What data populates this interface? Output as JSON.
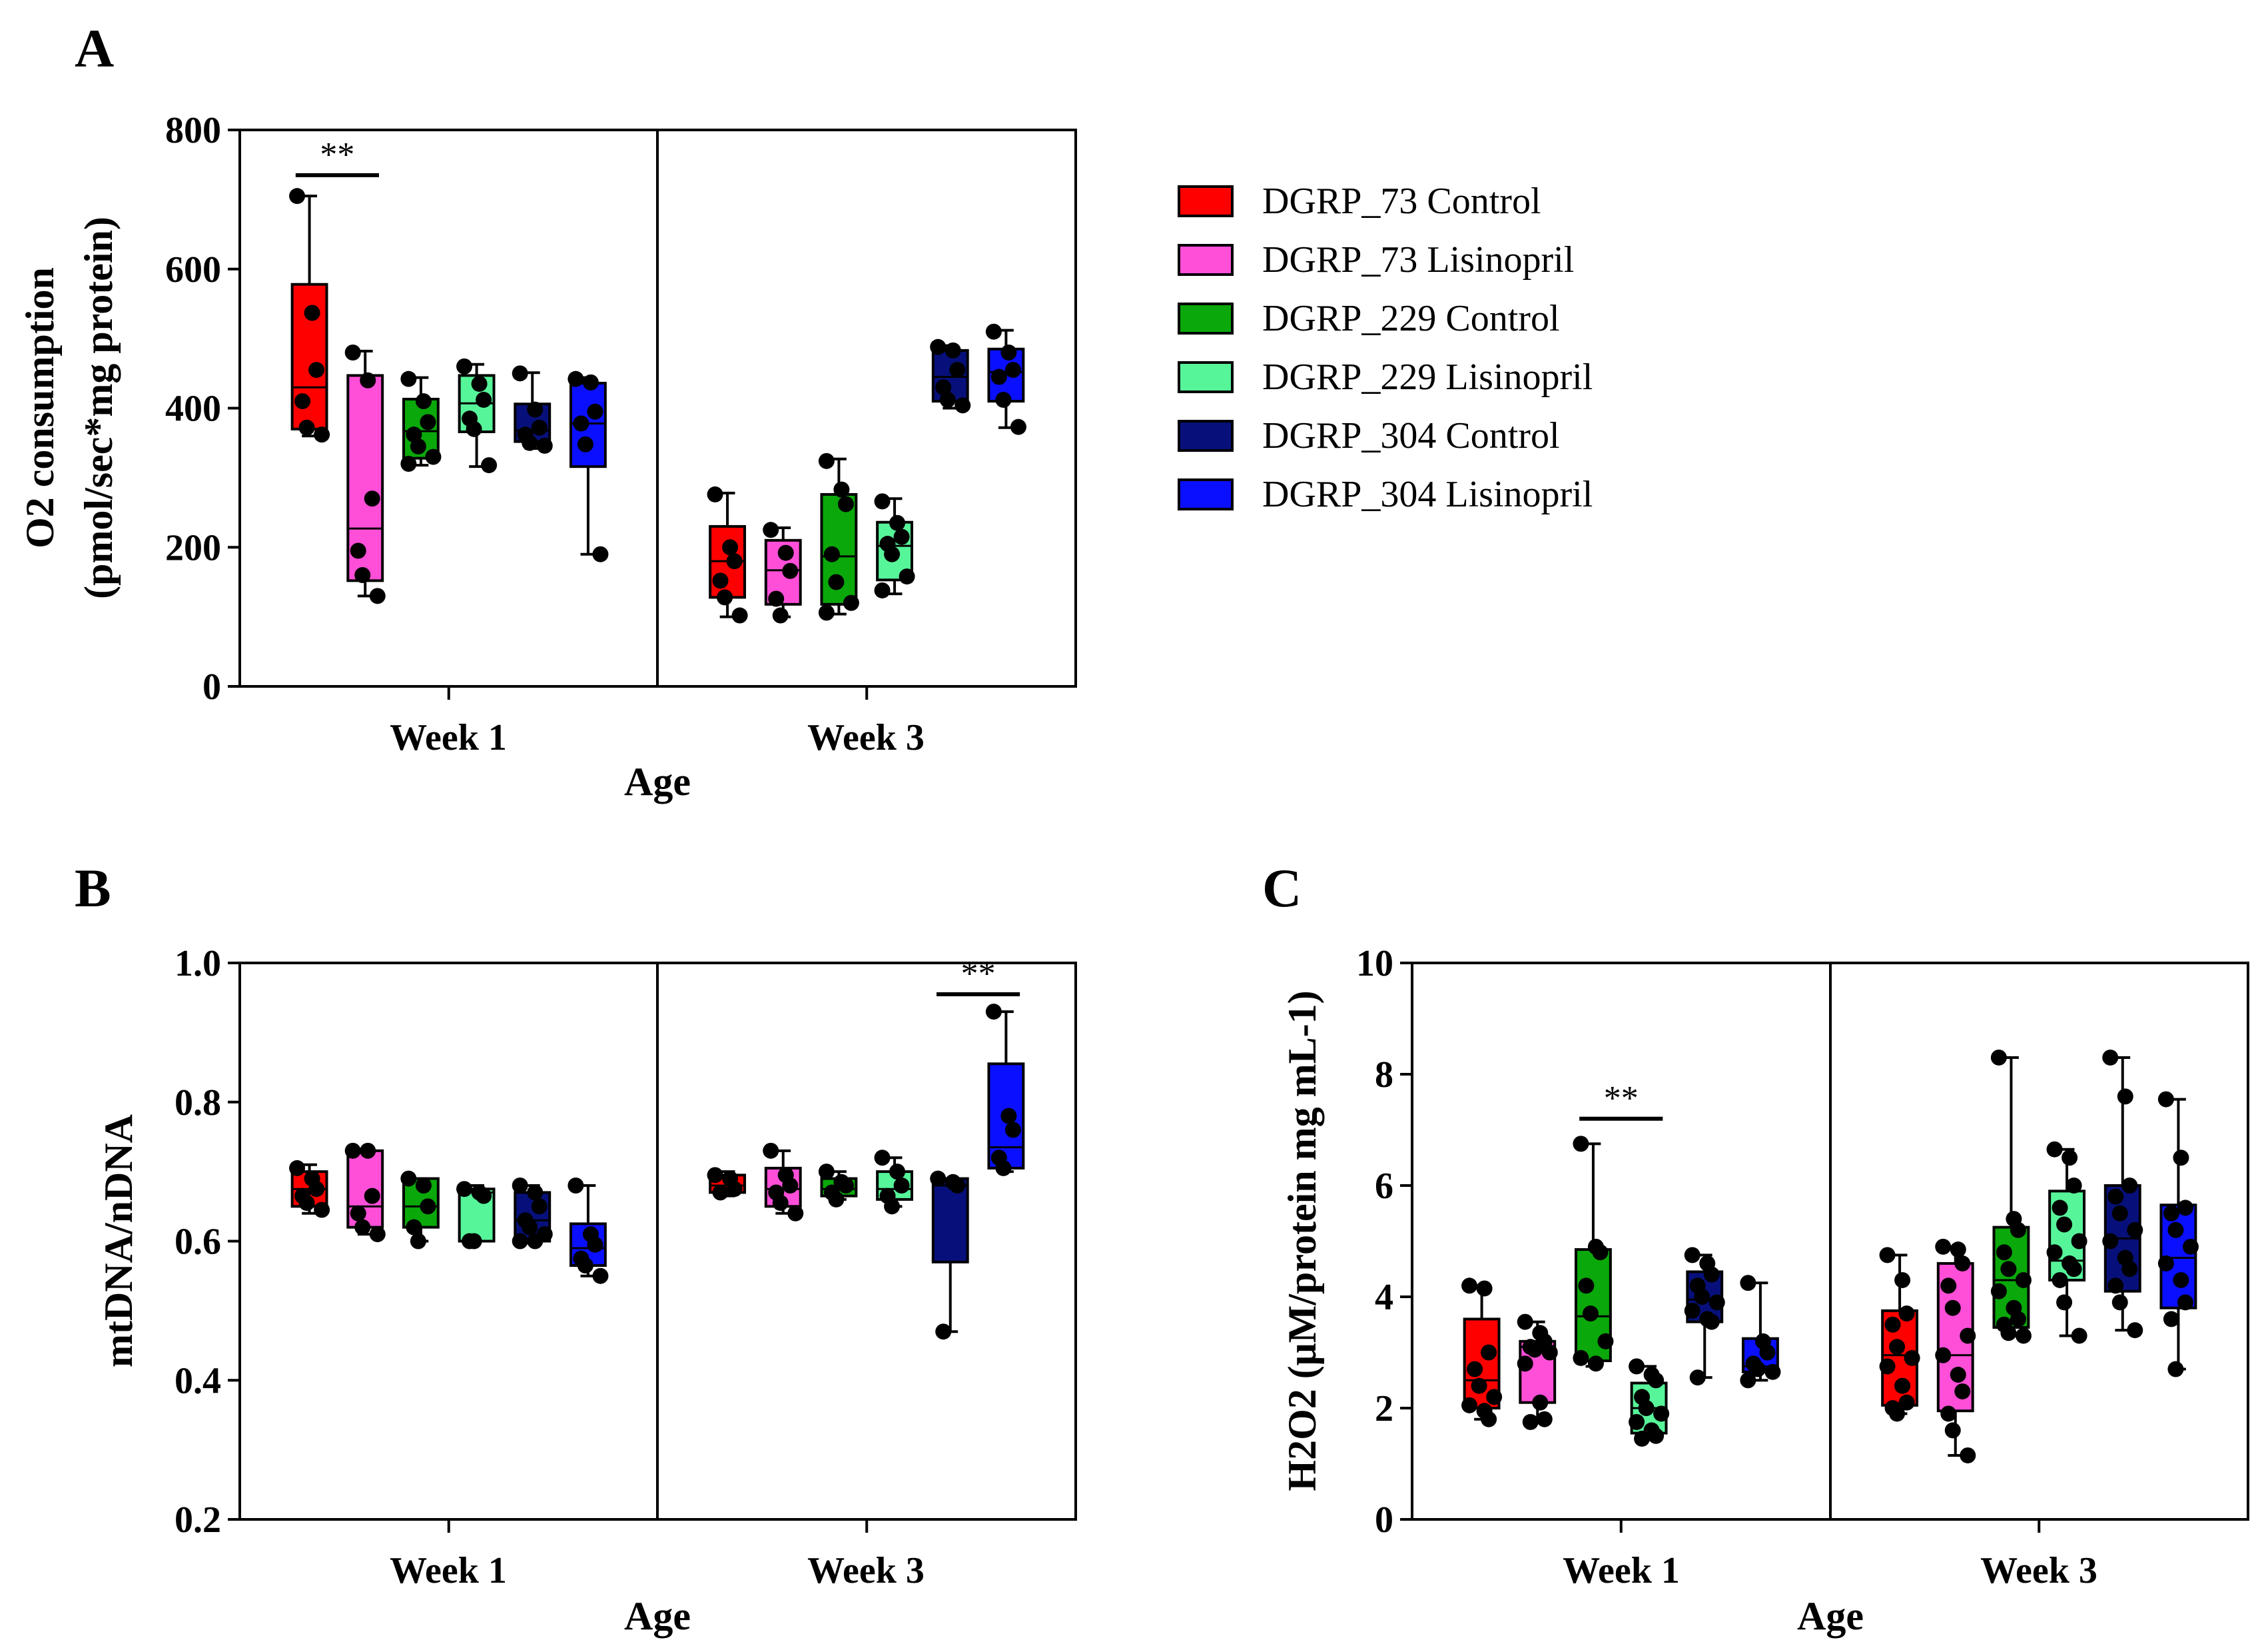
{
  "panels": {
    "A": {
      "letter": "A"
    },
    "B": {
      "letter": "B"
    },
    "C": {
      "letter": "C"
    }
  },
  "legend": [
    {
      "label": "DGRP_73 Control",
      "color": "#ff0000"
    },
    {
      "label": "DGRP_73 Lisinopril",
      "color": "#ff4fd8"
    },
    {
      "label": "DGRP_229 Control",
      "color": "#0aa80a"
    },
    {
      "label": "DGRP_229 Lisinopril",
      "color": "#57f59a"
    },
    {
      "label": "DGRP_304 Control",
      "color": "#07107a"
    },
    {
      "label": "DGRP_304 Lisinopril",
      "color": "#0a10ff"
    }
  ],
  "chart_data": [
    {
      "panel": "A",
      "type": "box",
      "title": "",
      "xlabel": "Age",
      "ylabel_lines": [
        "O2 consumption",
        "(pmol/sec*mg protein)"
      ],
      "ylim": [
        0,
        800
      ],
      "yticks": [
        0,
        200,
        400,
        600,
        800
      ],
      "ytick_labels": [
        "0",
        "200",
        "400",
        "600",
        "800"
      ],
      "categories": [
        "Week 1",
        "Week 3"
      ],
      "significance": [
        {
          "group": 0,
          "from": 0,
          "to": 1,
          "label": "**",
          "y": 735
        }
      ],
      "groups": [
        [
          {
            "whisker": [
              360,
              705
            ],
            "box": [
              370,
              578
            ],
            "median": 430,
            "points": [
              705,
              537,
              455,
              410,
              372,
              362
            ]
          },
          {
            "whisker": [
              130,
              482
            ],
            "box": [
              152,
              447
            ],
            "median": 227,
            "points": [
              480,
              440,
              270,
              195,
              160,
              130
            ]
          },
          {
            "whisker": [
              318,
              444
            ],
            "box": [
              328,
              413
            ],
            "median": 367,
            "points": [
              442,
              410,
              380,
              362,
              345,
              330,
              320
            ]
          },
          {
            "whisker": [
              316,
              463
            ],
            "box": [
              366,
              447
            ],
            "median": 407,
            "points": [
              460,
              435,
              412,
              385,
              370,
              318
            ]
          },
          {
            "whisker": [
              342,
              451
            ],
            "box": [
              352,
              406
            ],
            "median": 368,
            "points": [
              450,
              398,
              372,
              362,
              350,
              346
            ]
          },
          {
            "whisker": [
              190,
              444
            ],
            "box": [
              316,
              436
            ],
            "median": 378,
            "points": [
              442,
              437,
              395,
              378,
              348,
              190
            ]
          }
        ],
        [
          {
            "whisker": [
              100,
              278
            ],
            "box": [
              128,
              230
            ],
            "median": 180,
            "points": [
              276,
              200,
              180,
              152,
              128,
              102
            ]
          },
          {
            "whisker": [
              100,
              228
            ],
            "box": [
              118,
              210
            ],
            "median": 167,
            "points": [
              225,
              192,
              166,
              126,
              102
            ]
          },
          {
            "whisker": [
              104,
              327
            ],
            "box": [
              118,
              276
            ],
            "median": 187,
            "points": [
              324,
              283,
              262,
              190,
              150,
              120,
              106
            ]
          },
          {
            "whisker": [
              133,
              270
            ],
            "box": [
              153,
              236
            ],
            "median": 202,
            "points": [
              266,
              235,
              215,
              205,
              190,
              158,
              138
            ]
          },
          {
            "whisker": [
              400,
              490
            ],
            "box": [
              410,
              483
            ],
            "median": 445,
            "points": [
              488,
              483,
              455,
              430,
              412,
              404
            ]
          },
          {
            "whisker": [
              372,
              512
            ],
            "box": [
              410,
              485
            ],
            "median": 452,
            "points": [
              510,
              480,
              455,
              445,
              412,
              373
            ]
          }
        ]
      ]
    },
    {
      "panel": "B",
      "type": "box",
      "title": "",
      "xlabel": "Age",
      "ylabel": "mtDNA/nDNA",
      "ylim": [
        0.2,
        1.0
      ],
      "yticks": [
        0.2,
        0.4,
        0.6,
        0.8,
        1.0
      ],
      "ytick_labels": [
        "0.2",
        "0.4",
        "0.6",
        "0.8",
        "1.0"
      ],
      "categories": [
        "Week 1",
        "Week 3"
      ],
      "significance": [
        {
          "group": 1,
          "from": 4,
          "to": 5,
          "label": "**",
          "y": 0.955
        }
      ],
      "groups": [
        [
          {
            "whisker": [
              0.64,
              0.71
            ],
            "box": [
              0.65,
              0.7
            ],
            "median": 0.675,
            "points": [
              0.705,
              0.69,
              0.675,
              0.665,
              0.655,
              0.645
            ]
          },
          {
            "whisker": [
              0.61,
              0.73
            ],
            "box": [
              0.62,
              0.73
            ],
            "median": 0.65,
            "points": [
              0.73,
              0.73,
              0.665,
              0.64,
              0.62,
              0.61
            ]
          },
          {
            "whisker": [
              0.6,
              0.69
            ],
            "box": [
              0.62,
              0.69
            ],
            "median": 0.65,
            "points": [
              0.69,
              0.68,
              0.65,
              0.62,
              0.6
            ]
          },
          {
            "whisker": [
              0.6,
              0.68
            ],
            "box": [
              0.6,
              0.675
            ],
            "median": 0.67,
            "points": [
              0.675,
              0.67,
              0.665,
              0.6,
              0.6
            ]
          },
          {
            "whisker": [
              0.6,
              0.68
            ],
            "box": [
              0.6,
              0.67
            ],
            "median": 0.63,
            "points": [
              0.68,
              0.67,
              0.65,
              0.63,
              0.62,
              0.61,
              0.6,
              0.6
            ]
          },
          {
            "whisker": [
              0.55,
              0.68
            ],
            "box": [
              0.565,
              0.625
            ],
            "median": 0.59,
            "points": [
              0.68,
              0.61,
              0.595,
              0.575,
              0.565,
              0.55
            ]
          }
        ],
        [
          {
            "whisker": [
              0.665,
              0.7
            ],
            "box": [
              0.67,
              0.695
            ],
            "median": 0.68,
            "points": [
              0.695,
              0.69,
              0.675,
              0.67
            ]
          },
          {
            "whisker": [
              0.64,
              0.73
            ],
            "box": [
              0.65,
              0.705
            ],
            "median": 0.675,
            "points": [
              0.73,
              0.695,
              0.68,
              0.67,
              0.655,
              0.64
            ]
          },
          {
            "whisker": [
              0.66,
              0.7
            ],
            "box": [
              0.665,
              0.69
            ],
            "median": 0.675,
            "points": [
              0.7,
              0.685,
              0.68,
              0.67,
              0.66
            ]
          },
          {
            "whisker": [
              0.65,
              0.72
            ],
            "box": [
              0.66,
              0.7
            ],
            "median": 0.675,
            "points": [
              0.72,
              0.7,
              0.68,
              0.665,
              0.65
            ]
          },
          {
            "whisker": [
              0.47,
              0.69
            ],
            "box": [
              0.57,
              0.69
            ],
            "median": 0.68,
            "points": [
              0.69,
              0.685,
              0.68,
              0.47
            ]
          },
          {
            "whisker": [
              0.7,
              0.93
            ],
            "box": [
              0.705,
              0.855
            ],
            "median": 0.735,
            "points": [
              0.93,
              0.78,
              0.76,
              0.72,
              0.705
            ]
          }
        ]
      ]
    },
    {
      "panel": "C",
      "type": "box",
      "title": "",
      "xlabel": "Age",
      "ylabel_lines": [
        "H2O2 (μM/protein mg mL-1)"
      ],
      "ylim": [
        0,
        10
      ],
      "yticks": [
        0,
        2,
        4,
        6,
        8,
        10
      ],
      "ytick_labels": [
        "0",
        "2",
        "4",
        "6",
        "8",
        "10"
      ],
      "categories": [
        "Week 1",
        "Week 3"
      ],
      "significance": [
        {
          "group": 0,
          "from": 2,
          "to": 3,
          "label": "**",
          "y": 7.2
        }
      ],
      "groups": [
        [
          {
            "whisker": [
              1.8,
              4.2
            ],
            "box": [
              2.0,
              3.6
            ],
            "median": 2.5,
            "points": [
              4.2,
              4.15,
              3.0,
              2.7,
              2.4,
              2.2,
              2.05,
              1.95,
              1.8
            ]
          },
          {
            "whisker": [
              1.75,
              3.55
            ],
            "box": [
              2.1,
              3.2
            ],
            "median": 3.1,
            "points": [
              3.55,
              3.35,
              3.2,
              3.1,
              3.05,
              3.0,
              2.8,
              2.1,
              1.8,
              1.75
            ]
          },
          {
            "whisker": [
              2.75,
              6.75
            ],
            "box": [
              2.85,
              4.85
            ],
            "median": 3.65,
            "points": [
              6.75,
              4.9,
              4.8,
              4.2,
              3.7,
              3.2,
              2.9,
              2.8
            ]
          },
          {
            "whisker": [
              1.45,
              2.75
            ],
            "box": [
              1.55,
              2.45
            ],
            "median": 2.0,
            "points": [
              2.75,
              2.6,
              2.5,
              2.2,
              2.0,
              1.9,
              1.75,
              1.6,
              1.5,
              1.45
            ]
          },
          {
            "whisker": [
              2.55,
              4.75
            ],
            "box": [
              3.55,
              4.45
            ],
            "median": 3.95,
            "points": [
              4.75,
              4.6,
              4.4,
              4.2,
              4.0,
              3.9,
              3.75,
              3.6,
              3.55,
              2.55
            ]
          },
          {
            "whisker": [
              2.5,
              4.25
            ],
            "box": [
              2.65,
              3.25
            ],
            "median": 2.75,
            "points": [
              4.25,
              3.2,
              3.0,
              2.8,
              2.7,
              2.65,
              2.5
            ]
          }
        ],
        [
          {
            "whisker": [
              1.9,
              4.75
            ],
            "box": [
              2.05,
              3.75
            ],
            "median": 2.95,
            "points": [
              4.75,
              4.3,
              3.7,
              3.5,
              3.1,
              2.9,
              2.75,
              2.4,
              2.1,
              2.0,
              1.9
            ]
          },
          {
            "whisker": [
              1.15,
              4.9
            ],
            "box": [
              1.95,
              4.6
            ],
            "median": 2.95,
            "points": [
              4.9,
              4.85,
              4.6,
              4.2,
              3.8,
              3.3,
              2.95,
              2.6,
              2.3,
              1.9,
              1.6,
              1.15
            ]
          },
          {
            "whisker": [
              3.3,
              8.3
            ],
            "box": [
              3.45,
              5.25
            ],
            "median": 4.3,
            "points": [
              8.3,
              5.4,
              5.2,
              4.8,
              4.5,
              4.3,
              4.1,
              3.8,
              3.6,
              3.5,
              3.35,
              3.3
            ]
          },
          {
            "whisker": [
              3.3,
              6.65
            ],
            "box": [
              4.3,
              5.9
            ],
            "median": 4.65,
            "points": [
              6.65,
              6.5,
              6.0,
              5.6,
              5.3,
              5.0,
              4.8,
              4.6,
              4.5,
              4.3,
              3.9,
              3.3
            ]
          },
          {
            "whisker": [
              3.4,
              8.3
            ],
            "box": [
              4.1,
              6.0
            ],
            "median": 5.05,
            "points": [
              8.3,
              7.6,
              6.0,
              5.8,
              5.5,
              5.2,
              5.0,
              4.7,
              4.5,
              4.2,
              3.9,
              3.4
            ]
          },
          {
            "whisker": [
              2.7,
              7.55
            ],
            "box": [
              3.8,
              5.65
            ],
            "median": 4.7,
            "points": [
              7.55,
              6.5,
              5.6,
              5.5,
              5.2,
              4.9,
              4.6,
              4.3,
              3.9,
              3.6,
              2.7
            ]
          }
        ]
      ]
    }
  ]
}
